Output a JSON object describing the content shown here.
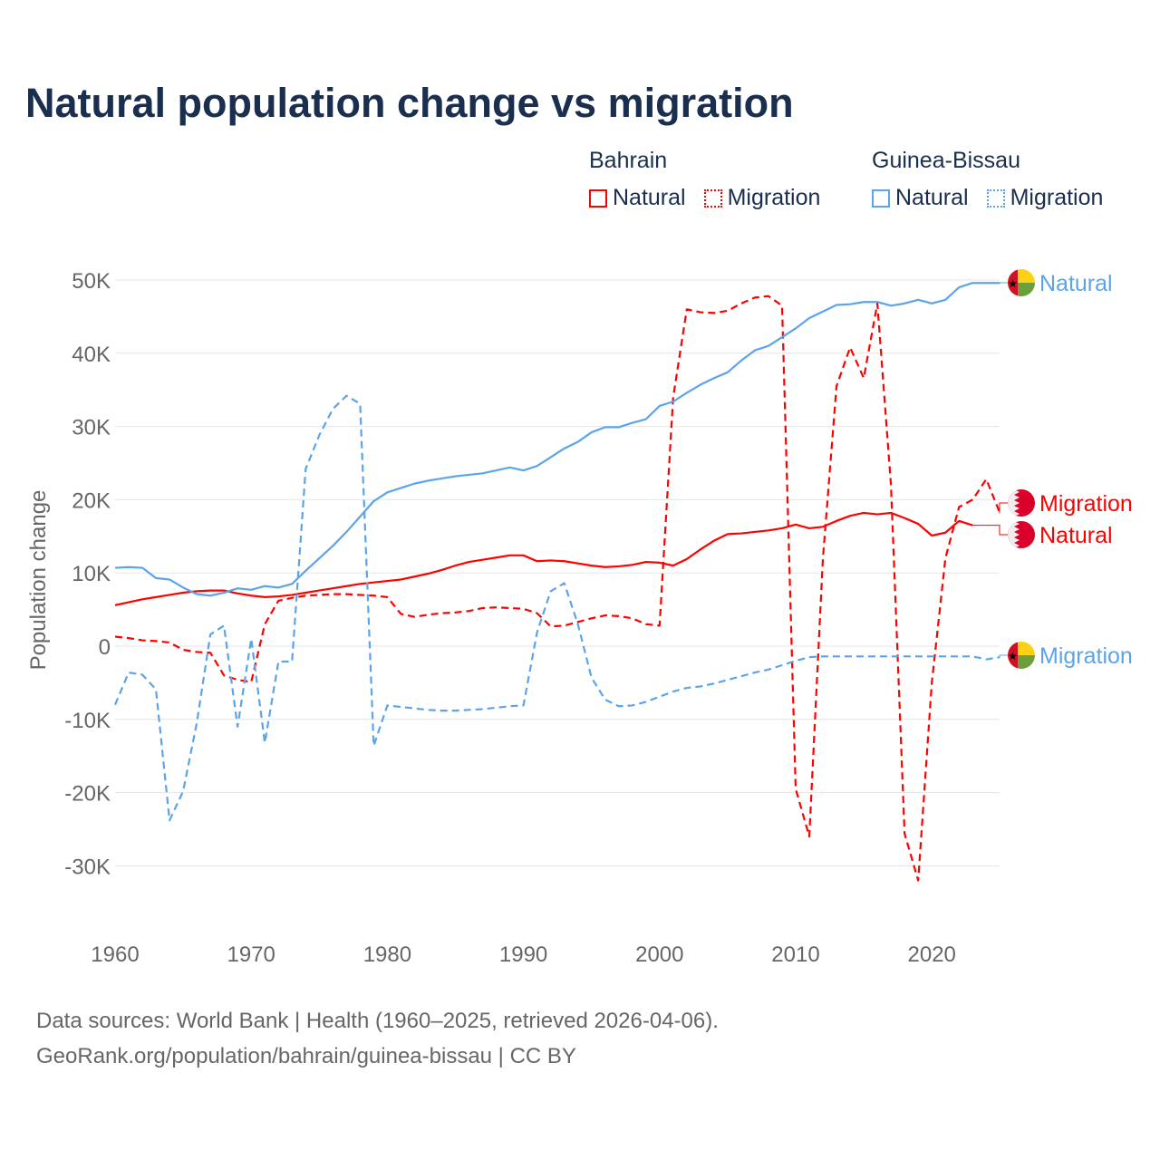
{
  "chart_data": {
    "type": "line",
    "title": "Natural population change vs migration",
    "xlabel": "",
    "ylabel": "Population change",
    "xlim": [
      1960,
      2025
    ],
    "ylim": [
      -35000,
      52000
    ],
    "x_ticks": [
      1960,
      1970,
      1980,
      1990,
      2000,
      2010,
      2020
    ],
    "x_tick_labels": [
      "1960",
      "1970",
      "1980",
      "1990",
      "2000",
      "2010",
      "2020"
    ],
    "y_ticks": [
      50000,
      40000,
      30000,
      20000,
      10000,
      0,
      -10000,
      -20000,
      -30000
    ],
    "y_tick_labels": [
      "50K",
      "40K",
      "30K",
      "20K",
      "10K",
      "0",
      "-10K",
      "-20K",
      "-30K"
    ],
    "grid": true,
    "legend_placement": "top-right",
    "legend_groups": [
      {
        "country": "Bahrain",
        "items": [
          "Natural",
          "Migration"
        ]
      },
      {
        "country": "Guinea-Bissau",
        "items": [
          "Natural",
          "Migration"
        ]
      }
    ],
    "series": [
      {
        "name": "Bahrain Natural",
        "country": "Bahrain",
        "kind": "Natural",
        "end_label": "Natural",
        "color": "#ff0000",
        "dashed": false,
        "start_year": 1960,
        "values": [
          5600,
          6000,
          6400,
          6700,
          7000,
          7300,
          7500,
          7600,
          7600,
          7200,
          6900,
          6700,
          6800,
          7000,
          7300,
          7600,
          7900,
          8200,
          8500,
          8700,
          8900,
          9100,
          9500,
          9900,
          10400,
          11000,
          11500,
          11800,
          12100,
          12400,
          12400,
          11600,
          11700,
          11600,
          11300,
          11000,
          10800,
          10900,
          11100,
          11500,
          11400,
          11000,
          11900,
          13200,
          14400,
          15300,
          15400,
          15600,
          15800,
          16100,
          16600,
          16100,
          16300,
          17100,
          17800,
          18200,
          18000,
          18200,
          17500,
          16700,
          15100,
          15500,
          17100,
          16500
        ]
      },
      {
        "name": "Bahrain Migration",
        "country": "Bahrain",
        "kind": "Migration",
        "end_label": "Migration",
        "color": "#ff0000",
        "dashed": true,
        "start_year": 1960,
        "values": [
          1300,
          1100,
          800,
          700,
          500,
          -500,
          -800,
          -900,
          -4000,
          -4600,
          -4900,
          3000,
          6200,
          6600,
          6900,
          7000,
          7100,
          7100,
          7000,
          6900,
          6700,
          4400,
          4000,
          4300,
          4500,
          4600,
          4800,
          5200,
          5300,
          5200,
          5100,
          4500,
          2700,
          2800,
          3300,
          3800,
          4200,
          4100,
          3800,
          3000,
          2800,
          34000,
          46000,
          45600,
          45500,
          45800,
          46800,
          47600,
          47800,
          46500,
          -19500,
          -26000,
          12000,
          35500,
          40800,
          36600,
          46800,
          22000,
          -25600,
          -32000,
          -5000,
          12000,
          19000,
          20000,
          22800,
          18200
        ]
      },
      {
        "name": "Guinea-Bissau Natural",
        "country": "Guinea-Bissau",
        "kind": "Natural",
        "end_label": "Natural",
        "color": "#5ba4ea",
        "dashed": false,
        "start_year": 1960,
        "values": [
          10700,
          10800,
          10700,
          9300,
          9100,
          8000,
          7100,
          6900,
          7300,
          7900,
          7700,
          8200,
          8000,
          8500,
          10300,
          12000,
          13700,
          15600,
          17700,
          19800,
          21000,
          21600,
          22200,
          22600,
          22900,
          23200,
          23400,
          23600,
          24000,
          24400,
          24000,
          24600,
          25800,
          27000,
          27900,
          29200,
          29900,
          29900,
          30500,
          31000,
          32800,
          33400,
          34600,
          35700,
          36600,
          37400,
          39000,
          40400,
          41000,
          42200,
          43400,
          44800,
          45700,
          46600,
          46700,
          47000,
          47000,
          46500,
          46800,
          47300,
          46800,
          47300,
          49000,
          49600,
          49600,
          49600
        ]
      },
      {
        "name": "Guinea-Bissau Migration",
        "country": "Guinea-Bissau",
        "kind": "Migration",
        "end_label": "Migration",
        "color": "#5ba4ea",
        "dashed": true,
        "start_year": 1960,
        "values": [
          -8000,
          -3600,
          -3900,
          -5900,
          -23800,
          -19800,
          -10500,
          1600,
          2800,
          -11000,
          1000,
          -13200,
          -2100,
          -2100,
          24200,
          28800,
          32400,
          34200,
          33100,
          -13600,
          -8100,
          -8300,
          -8500,
          -8700,
          -8800,
          -8800,
          -8700,
          -8600,
          -8400,
          -8200,
          -8100,
          1900,
          7500,
          8600,
          3000,
          -4300,
          -7300,
          -8200,
          -8100,
          -7600,
          -6900,
          -6200,
          -5700,
          -5500,
          -5100,
          -4600,
          -4100,
          -3600,
          -3200,
          -2600,
          -2000,
          -1500,
          -1400,
          -1400,
          -1400,
          -1400,
          -1400,
          -1400,
          -1400,
          -1400,
          -1400,
          -1400,
          -1400,
          -1400,
          -1800,
          -1500
        ]
      }
    ]
  },
  "footer": {
    "line1": "Data sources: World Bank | Health (1960–2025, retrieved 2026-04-06).",
    "line2": "GeoRank.org/population/bahrain/guinea-bissau | CC BY"
  }
}
